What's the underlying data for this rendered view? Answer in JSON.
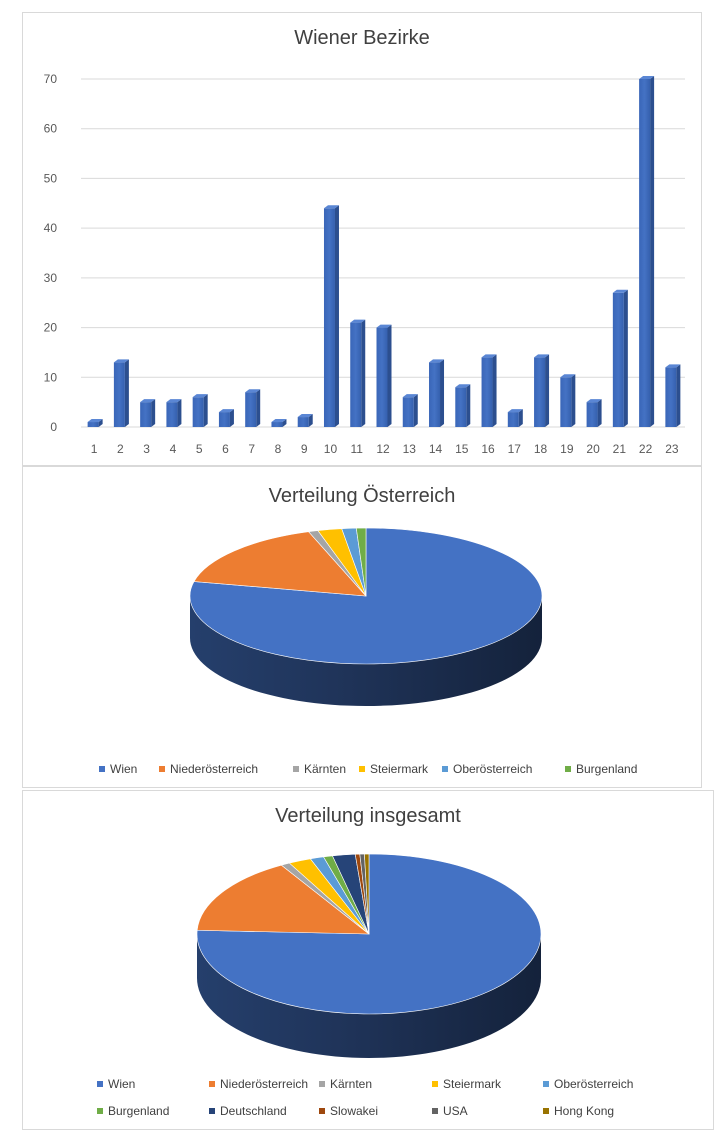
{
  "chart_data": [
    {
      "type": "bar",
      "title": "Wiener Bezirke",
      "categories": [
        "1",
        "2",
        "3",
        "4",
        "5",
        "6",
        "7",
        "8",
        "9",
        "10",
        "11",
        "12",
        "13",
        "14",
        "15",
        "16",
        "17",
        "18",
        "19",
        "20",
        "21",
        "22",
        "23"
      ],
      "values": [
        1,
        13,
        5,
        5,
        6,
        3,
        7,
        1,
        2,
        44,
        21,
        20,
        6,
        13,
        8,
        14,
        3,
        14,
        10,
        5,
        27,
        70,
        12
      ],
      "ylim": [
        0,
        70
      ],
      "yticks": [
        "0",
        "10",
        "20",
        "30",
        "40",
        "50",
        "60",
        "70"
      ],
      "grid": true,
      "color": "#4472c4"
    },
    {
      "type": "pie",
      "title": "Verteilung Österreich",
      "labels": [
        "Wien",
        "Niederösterreich",
        "Kärnten",
        "Steiermark",
        "Oberösterreich",
        "Burgenland"
      ],
      "values": [
        178,
        37,
        2,
        5,
        3,
        2
      ],
      "colors": [
        "#4472c4",
        "#ed7d31",
        "#a5a5a5",
        "#ffc000",
        "#5b9bd5",
        "#70ad47"
      ],
      "legend_position": "bottom"
    },
    {
      "type": "pie",
      "title": "Verteilung insgesamt",
      "labels": [
        "Wien",
        "Niederösterreich",
        "Kärnten",
        "Steiermark",
        "Oberösterreich",
        "Burgenland",
        "Deutschland",
        "Slowakei",
        "USA",
        "Hong Kong"
      ],
      "values": [
        178,
        37,
        2,
        5,
        3,
        2,
        5,
        1,
        1,
        1
      ],
      "colors": [
        "#4472c4",
        "#ed7d31",
        "#a5a5a5",
        "#ffc000",
        "#5b9bd5",
        "#70ad47",
        "#264478",
        "#9e480e",
        "#636363",
        "#997300"
      ],
      "legend_position": "bottom"
    }
  ]
}
